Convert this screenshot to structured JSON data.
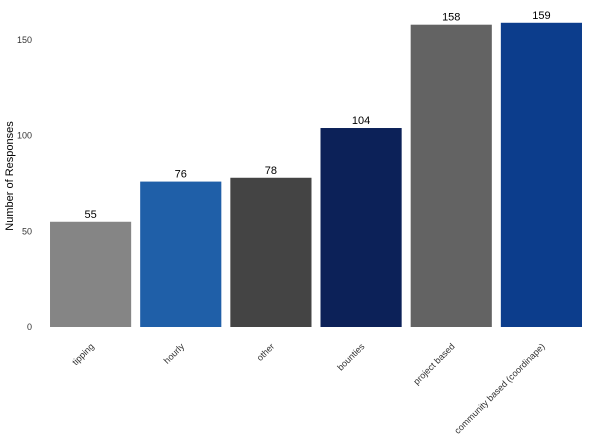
{
  "chart_data": {
    "type": "bar",
    "y_label": "Number of Responses",
    "categories": [
      "tipping",
      "hourly",
      "other",
      "bounties",
      "project based",
      "community based (coordinape)"
    ],
    "values": [
      55,
      76,
      78,
      104,
      158,
      159
    ],
    "colors": [
      "#858585",
      "#1f5fa8",
      "#444444",
      "#0c2158",
      "#636363",
      "#0c3d8c"
    ],
    "ylim": [
      0,
      165
    ],
    "yticks": [
      0,
      50,
      100,
      150
    ],
    "grid": false
  }
}
